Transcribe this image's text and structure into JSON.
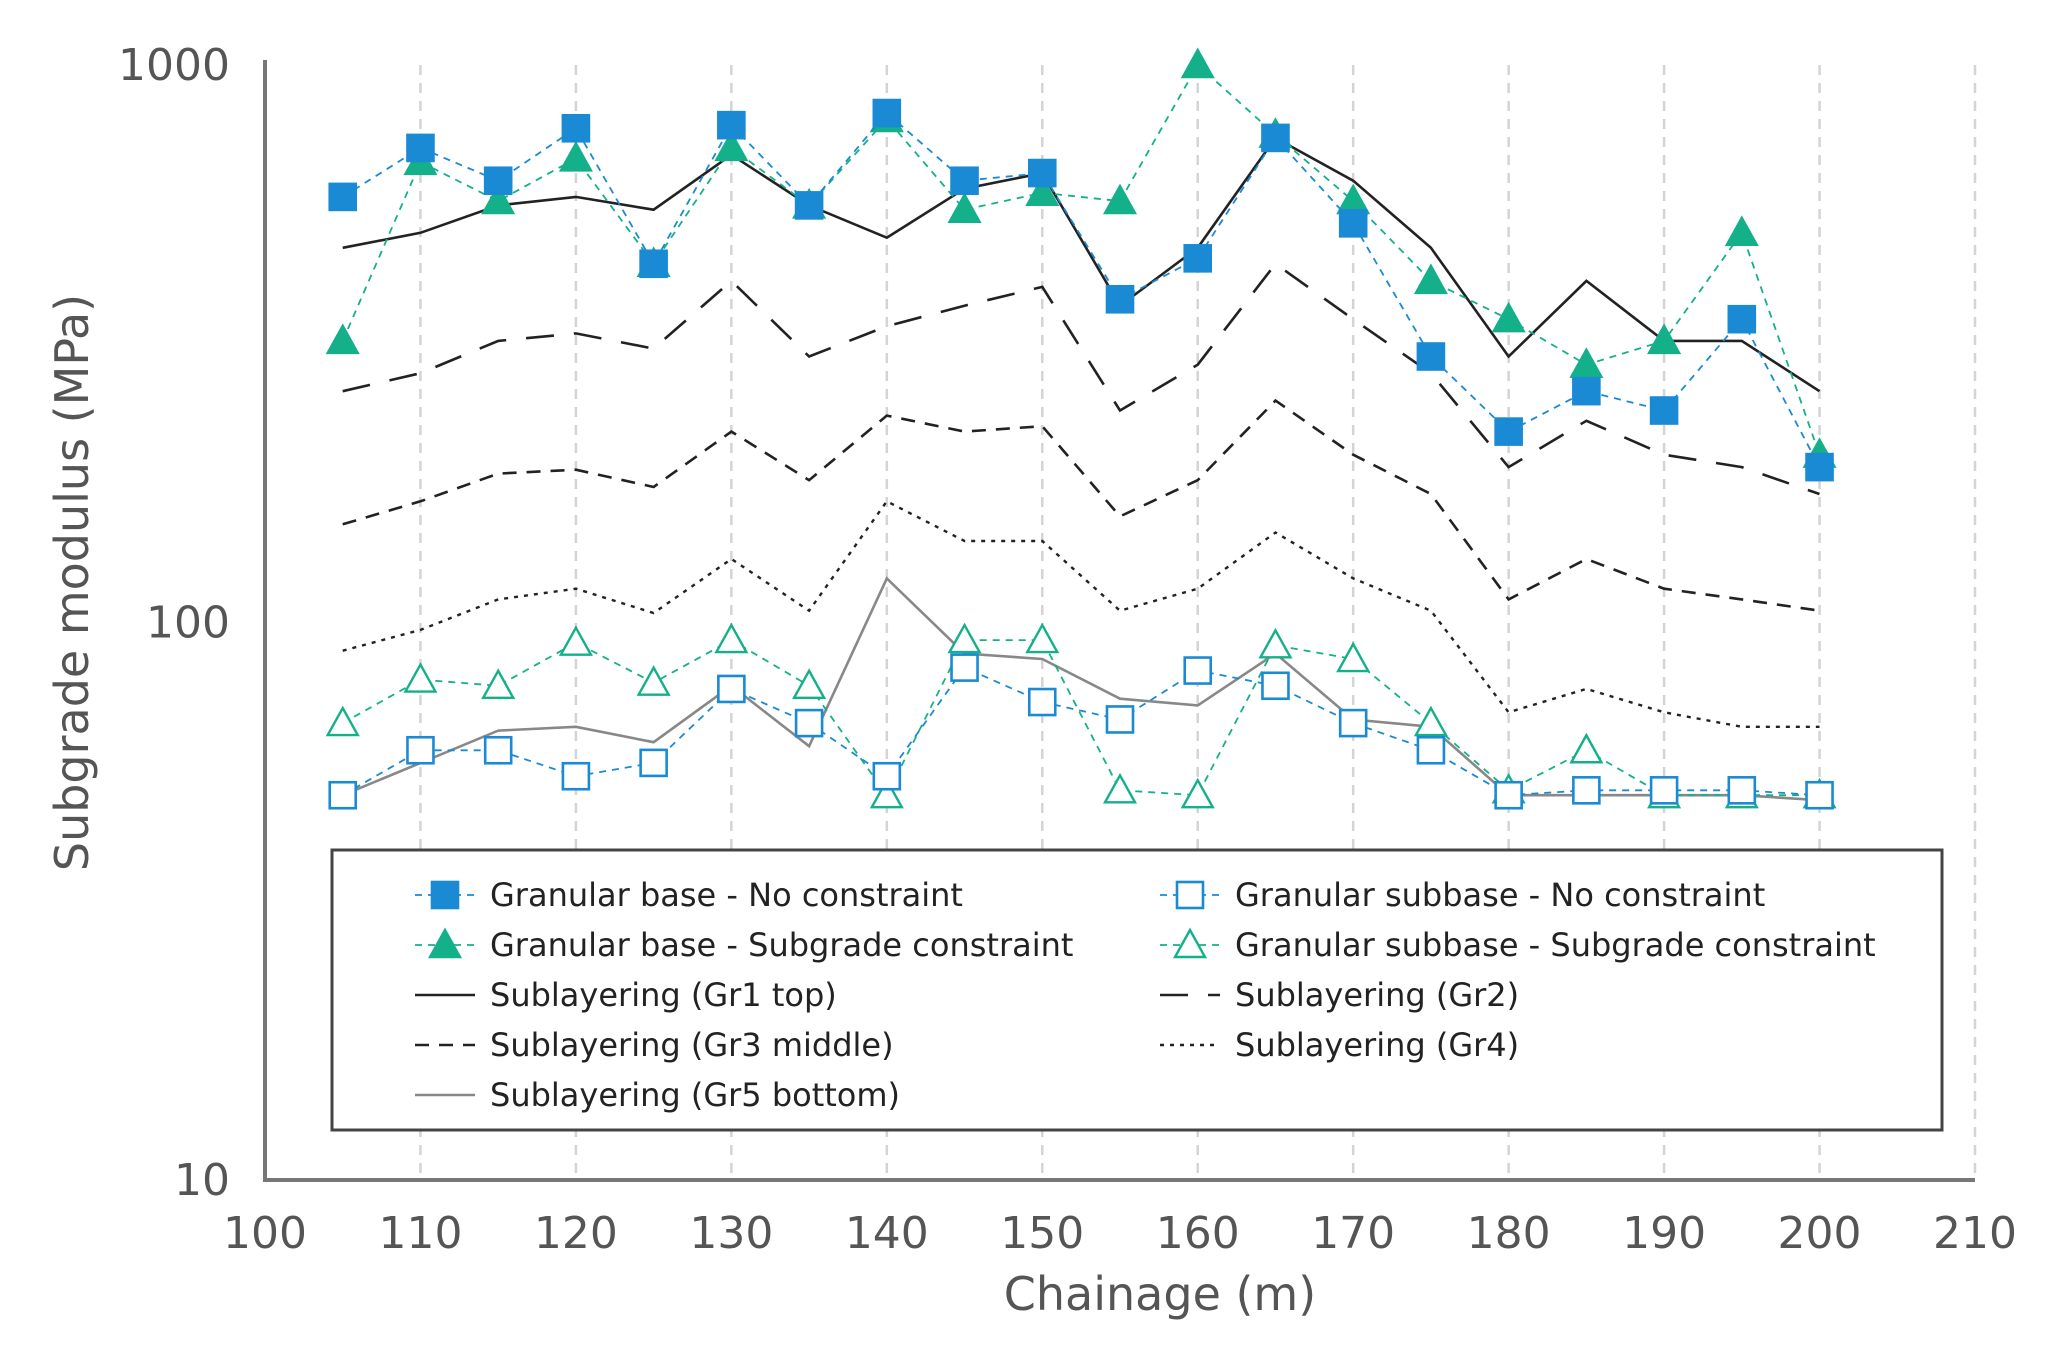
{
  "chart_data": {
    "type": "line",
    "title": "",
    "xlabel": "Chainage (m)",
    "ylabel": "Subgrade modulus (MPa)",
    "x_range": [
      100,
      210
    ],
    "x_ticks": [
      "100",
      "110",
      "120",
      "130",
      "140",
      "150",
      "160",
      "170",
      "180",
      "190",
      "200",
      "210"
    ],
    "y_range": [
      10,
      1000
    ],
    "y_scale": "log",
    "y_ticks": [
      "10",
      "100",
      "1000"
    ],
    "grid": "vertical dashed",
    "legend_position": "bottom-inside",
    "series": [
      {
        "name": "Granular base - No constraint",
        "style": "dash",
        "marker": "filled-square",
        "color": "#1a8ad4",
        "x": [
          105,
          110,
          115,
          120,
          125,
          130,
          135,
          140,
          145,
          150,
          155,
          160,
          165,
          170,
          175,
          180,
          185,
          190,
          195,
          200
        ],
        "y": [
          580,
          710,
          620,
          770,
          440,
          780,
          560,
          820,
          620,
          640,
          380,
          450,
          740,
          520,
          300,
          220,
          260,
          240,
          350,
          190
        ]
      },
      {
        "name": "Granular subbase - No constraint",
        "style": "dash",
        "marker": "open-square",
        "color": "#1a8ad4",
        "x": [
          105,
          110,
          115,
          120,
          125,
          130,
          135,
          140,
          145,
          150,
          155,
          160,
          165,
          170,
          175,
          180,
          185,
          190,
          195,
          200
        ],
        "y": [
          49,
          59,
          59,
          53,
          56,
          76,
          66,
          53,
          83,
          72,
          67,
          82,
          77,
          66,
          59,
          49,
          50,
          50,
          50,
          49
        ]
      },
      {
        "name": "Granular base - Subgrade constraint",
        "style": "dash",
        "marker": "filled-triangle",
        "color": "#14b08a",
        "x": [
          105,
          110,
          115,
          120,
          125,
          130,
          135,
          140,
          145,
          150,
          155,
          160,
          165,
          170,
          175,
          180,
          185,
          190,
          195,
          200
        ],
        "y": [
          320,
          670,
          570,
          680,
          440,
          710,
          560,
          800,
          550,
          590,
          570,
          1000,
          750,
          570,
          410,
          350,
          290,
          320,
          500,
          200
        ]
      },
      {
        "name": "Granular subbase - Subgrade constraint",
        "style": "dash",
        "marker": "open-triangle",
        "color": "#14b08a",
        "x": [
          105,
          110,
          115,
          120,
          125,
          130,
          135,
          140,
          145,
          150,
          155,
          160,
          165,
          170,
          175,
          180,
          185,
          190,
          195,
          200
        ],
        "y": [
          66,
          79,
          77,
          92,
          78,
          93,
          77,
          49,
          93,
          93,
          50,
          49,
          91,
          86,
          66,
          50,
          59,
          49,
          49,
          49
        ]
      },
      {
        "name": "Sublayering (Gr1 top)",
        "style": "solid",
        "marker": "none",
        "color": "#222222",
        "x": [
          105,
          110,
          115,
          120,
          125,
          130,
          135,
          140,
          145,
          150,
          155,
          160,
          165,
          170,
          175,
          180,
          185,
          190,
          195,
          200
        ],
        "y": [
          470,
          500,
          560,
          580,
          550,
          690,
          560,
          490,
          600,
          640,
          370,
          470,
          740,
          620,
          470,
          300,
          410,
          320,
          320,
          260
        ]
      },
      {
        "name": "Sublayering (Gr2)",
        "style": "longdash",
        "marker": "none",
        "color": "#222222",
        "x": [
          105,
          110,
          115,
          120,
          125,
          130,
          135,
          140,
          145,
          150,
          155,
          160,
          165,
          170,
          175,
          180,
          185,
          190,
          195,
          200
        ],
        "y": [
          260,
          280,
          320,
          330,
          310,
          410,
          300,
          340,
          370,
          400,
          240,
          290,
          440,
          350,
          280,
          190,
          230,
          200,
          190,
          170
        ]
      },
      {
        "name": "Sublayering (Gr3 middle)",
        "style": "dash",
        "marker": "none",
        "color": "#222222",
        "x": [
          105,
          110,
          115,
          120,
          125,
          130,
          135,
          140,
          145,
          150,
          155,
          160,
          165,
          170,
          175,
          180,
          185,
          190,
          195,
          200
        ],
        "y": [
          150,
          165,
          185,
          188,
          175,
          220,
          180,
          235,
          220,
          225,
          155,
          180,
          250,
          200,
          170,
          110,
          130,
          115,
          110,
          105
        ]
      },
      {
        "name": "Sublayering (Gr4)",
        "style": "dot",
        "marker": "none",
        "color": "#222222",
        "x": [
          105,
          110,
          115,
          120,
          125,
          130,
          135,
          140,
          145,
          150,
          155,
          160,
          165,
          170,
          175,
          180,
          185,
          190,
          195,
          200
        ],
        "y": [
          89,
          97,
          110,
          115,
          104,
          130,
          105,
          165,
          140,
          140,
          105,
          115,
          145,
          120,
          105,
          69,
          76,
          69,
          65,
          65
        ]
      },
      {
        "name": "Sublayering (Gr5 bottom)",
        "style": "solid",
        "marker": "none",
        "color": "#888888",
        "x": [
          105,
          110,
          115,
          120,
          125,
          130,
          135,
          140,
          145,
          150,
          155,
          160,
          165,
          170,
          175,
          180,
          185,
          190,
          195,
          200
        ],
        "y": [
          49,
          56,
          64,
          65,
          61,
          77,
          60,
          120,
          88,
          86,
          73,
          71,
          88,
          67,
          65,
          49,
          49,
          49,
          49,
          48
        ]
      }
    ]
  }
}
